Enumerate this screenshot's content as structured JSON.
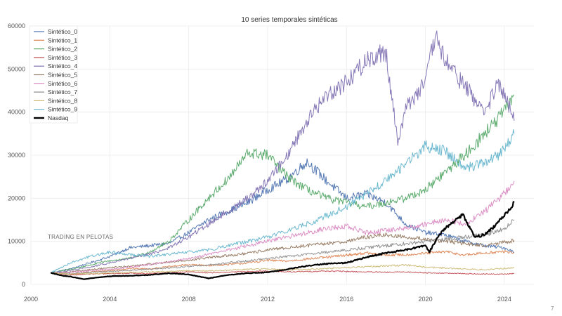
{
  "chart_data": {
    "type": "line",
    "title": "10 series temporales sintéticas",
    "xlabel": "",
    "ylabel": "",
    "xlim": [
      2000,
      2025.5
    ],
    "ylim": [
      0,
      60000
    ],
    "x_ticks": [
      "2000",
      "2004",
      "2008",
      "2012",
      "2016",
      "2020",
      "2024"
    ],
    "y_ticks": [
      "0",
      "10000",
      "20000",
      "30000",
      "40000",
      "50000",
      "60000"
    ],
    "grid": true,
    "legend_position": "top-left",
    "series": [
      {
        "name": "Sintético_0",
        "color": "#4c72b0",
        "width": 1,
        "points": [
          [
            2001,
            2700
          ],
          [
            2002,
            3600
          ],
          [
            2003,
            5000
          ],
          [
            2004,
            6500
          ],
          [
            2005,
            8500
          ],
          [
            2006,
            9000
          ],
          [
            2007,
            9500
          ],
          [
            2008,
            12000
          ],
          [
            2009,
            15000
          ],
          [
            2010,
            17000
          ],
          [
            2011,
            19000
          ],
          [
            2012,
            22000
          ],
          [
            2013,
            24500
          ],
          [
            2014,
            28500
          ],
          [
            2015,
            24000
          ],
          [
            2016,
            20000
          ],
          [
            2017,
            21000
          ],
          [
            2018,
            19000
          ],
          [
            2019,
            14000
          ],
          [
            2020,
            12000
          ],
          [
            2021,
            11500
          ],
          [
            2022,
            10000
          ],
          [
            2023,
            9000
          ],
          [
            2024,
            8500
          ],
          [
            2024.5,
            7500
          ]
        ]
      },
      {
        "name": "Sintético_1",
        "color": "#dd8452",
        "width": 1,
        "points": [
          [
            2001,
            2700
          ],
          [
            2002,
            2300
          ],
          [
            2003,
            2900
          ],
          [
            2004,
            3200
          ],
          [
            2005,
            3700
          ],
          [
            2006,
            3600
          ],
          [
            2007,
            4100
          ],
          [
            2008,
            4600
          ],
          [
            2009,
            4400
          ],
          [
            2010,
            4600
          ],
          [
            2011,
            5000
          ],
          [
            2012,
            5600
          ],
          [
            2013,
            5400
          ],
          [
            2014,
            5900
          ],
          [
            2015,
            6300
          ],
          [
            2016,
            6800
          ],
          [
            2017,
            7300
          ],
          [
            2018,
            6800
          ],
          [
            2019,
            6900
          ],
          [
            2020,
            7200
          ],
          [
            2021,
            7600
          ],
          [
            2022,
            6800
          ],
          [
            2023,
            7300
          ],
          [
            2024,
            7600
          ],
          [
            2024.5,
            7400
          ]
        ]
      },
      {
        "name": "Sintético_2",
        "color": "#55a868",
        "width": 1,
        "points": [
          [
            2001,
            2700
          ],
          [
            2002,
            3500
          ],
          [
            2003,
            4500
          ],
          [
            2004,
            5500
          ],
          [
            2005,
            6000
          ],
          [
            2006,
            7500
          ],
          [
            2007,
            10000
          ],
          [
            2008,
            15000
          ],
          [
            2009,
            20000
          ],
          [
            2010,
            24500
          ],
          [
            2011,
            30500
          ],
          [
            2012,
            30000
          ],
          [
            2013,
            25000
          ],
          [
            2014,
            22000
          ],
          [
            2015,
            20000
          ],
          [
            2016,
            19000
          ],
          [
            2017,
            18000
          ],
          [
            2018,
            19000
          ],
          [
            2019,
            20000
          ],
          [
            2020,
            22000
          ],
          [
            2021,
            26000
          ],
          [
            2022,
            30000
          ],
          [
            2023,
            35000
          ],
          [
            2024,
            40000
          ],
          [
            2024.5,
            44000
          ]
        ]
      },
      {
        "name": "Sintético_3",
        "color": "#c44e52",
        "width": 1,
        "points": [
          [
            2001,
            2700
          ],
          [
            2002,
            2200
          ],
          [
            2003,
            2400
          ],
          [
            2004,
            2500
          ],
          [
            2005,
            2600
          ],
          [
            2006,
            2500
          ],
          [
            2007,
            2700
          ],
          [
            2008,
            2900
          ],
          [
            2009,
            2700
          ],
          [
            2010,
            2800
          ],
          [
            2011,
            3000
          ],
          [
            2012,
            3100
          ],
          [
            2013,
            2900
          ],
          [
            2014,
            3000
          ],
          [
            2015,
            3100
          ],
          [
            2016,
            3000
          ],
          [
            2017,
            2900
          ],
          [
            2018,
            2800
          ],
          [
            2019,
            2900
          ],
          [
            2020,
            2700
          ],
          [
            2021,
            2600
          ],
          [
            2022,
            2500
          ],
          [
            2023,
            2400
          ],
          [
            2024,
            2400
          ],
          [
            2024.5,
            2500
          ]
        ]
      },
      {
        "name": "Sintético_4",
        "color": "#8172b3",
        "width": 1,
        "points": [
          [
            2001,
            2700
          ],
          [
            2002,
            3200
          ],
          [
            2003,
            4000
          ],
          [
            2004,
            5000
          ],
          [
            2005,
            6000
          ],
          [
            2006,
            7000
          ],
          [
            2007,
            8500
          ],
          [
            2008,
            11000
          ],
          [
            2009,
            14000
          ],
          [
            2010,
            17000
          ],
          [
            2011,
            20000
          ],
          [
            2012,
            24000
          ],
          [
            2013,
            30000
          ],
          [
            2014,
            38000
          ],
          [
            2015,
            44000
          ],
          [
            2016,
            47000
          ],
          [
            2017,
            52000
          ],
          [
            2018,
            54000
          ],
          [
            2018.6,
            33000
          ],
          [
            2019,
            41000
          ],
          [
            2020,
            47000
          ],
          [
            2020.5,
            57500
          ],
          [
            2021,
            52000
          ],
          [
            2022,
            46000
          ],
          [
            2023,
            40000
          ],
          [
            2023.7,
            46500
          ],
          [
            2024,
            44000
          ],
          [
            2024.5,
            38000
          ]
        ]
      },
      {
        "name": "Sintético_5",
        "color": "#937860",
        "width": 1,
        "points": [
          [
            2001,
            2700
          ],
          [
            2002,
            2900
          ],
          [
            2003,
            3400
          ],
          [
            2004,
            3900
          ],
          [
            2005,
            4200
          ],
          [
            2006,
            4700
          ],
          [
            2007,
            5200
          ],
          [
            2008,
            5600
          ],
          [
            2009,
            6200
          ],
          [
            2010,
            6700
          ],
          [
            2011,
            7200
          ],
          [
            2012,
            8000
          ],
          [
            2013,
            8500
          ],
          [
            2014,
            9000
          ],
          [
            2015,
            9500
          ],
          [
            2016,
            10000
          ],
          [
            2017,
            11000
          ],
          [
            2018,
            11500
          ],
          [
            2019,
            11000
          ],
          [
            2020,
            10500
          ],
          [
            2021,
            10000
          ],
          [
            2022,
            9500
          ],
          [
            2023,
            9000
          ],
          [
            2024,
            9800
          ],
          [
            2024.5,
            10200
          ]
        ]
      },
      {
        "name": "Sintético_6",
        "color": "#da8bc3",
        "width": 1,
        "points": [
          [
            2001,
            2700
          ],
          [
            2002,
            2800
          ],
          [
            2003,
            3200
          ],
          [
            2004,
            3500
          ],
          [
            2005,
            4000
          ],
          [
            2006,
            4600
          ],
          [
            2007,
            5200
          ],
          [
            2008,
            6000
          ],
          [
            2009,
            7000
          ],
          [
            2010,
            8000
          ],
          [
            2011,
            9000
          ],
          [
            2012,
            10000
          ],
          [
            2013,
            11000
          ],
          [
            2014,
            12000
          ],
          [
            2015,
            13000
          ],
          [
            2016,
            13500
          ],
          [
            2017,
            12000
          ],
          [
            2018,
            12500
          ],
          [
            2019,
            13000
          ],
          [
            2020,
            14000
          ],
          [
            2021,
            15000
          ],
          [
            2022,
            14000
          ],
          [
            2023,
            17000
          ],
          [
            2024,
            21000
          ],
          [
            2024.5,
            24000
          ]
        ]
      },
      {
        "name": "Sintético_7",
        "color": "#8c8c8c",
        "width": 1,
        "points": [
          [
            2001,
            2700
          ],
          [
            2002,
            2500
          ],
          [
            2003,
            2800
          ],
          [
            2004,
            3000
          ],
          [
            2005,
            3300
          ],
          [
            2006,
            3500
          ],
          [
            2007,
            3800
          ],
          [
            2008,
            4200
          ],
          [
            2009,
            4500
          ],
          [
            2010,
            5000
          ],
          [
            2011,
            5500
          ],
          [
            2012,
            6000
          ],
          [
            2013,
            6500
          ],
          [
            2014,
            7000
          ],
          [
            2015,
            7500
          ],
          [
            2016,
            8000
          ],
          [
            2017,
            8500
          ],
          [
            2018,
            9000
          ],
          [
            2019,
            9500
          ],
          [
            2020,
            10000
          ],
          [
            2021,
            10500
          ],
          [
            2022,
            11000
          ],
          [
            2023,
            11500
          ],
          [
            2024,
            13000
          ],
          [
            2024.5,
            15000
          ]
        ]
      },
      {
        "name": "Sintético_8",
        "color": "#ccb974",
        "width": 1,
        "points": [
          [
            2001,
            2700
          ],
          [
            2002,
            2400
          ],
          [
            2003,
            2500
          ],
          [
            2004,
            2600
          ],
          [
            2005,
            2800
          ],
          [
            2006,
            2900
          ],
          [
            2007,
            3000
          ],
          [
            2008,
            3200
          ],
          [
            2009,
            3100
          ],
          [
            2010,
            3300
          ],
          [
            2011,
            3500
          ],
          [
            2012,
            3600
          ],
          [
            2013,
            3400
          ],
          [
            2014,
            3500
          ],
          [
            2015,
            3700
          ],
          [
            2016,
            3900
          ],
          [
            2017,
            4100
          ],
          [
            2018,
            4300
          ],
          [
            2019,
            4500
          ],
          [
            2020,
            4000
          ],
          [
            2021,
            3800
          ],
          [
            2022,
            3600
          ],
          [
            2023,
            3400
          ],
          [
            2024,
            3700
          ],
          [
            2024.5,
            3900
          ]
        ]
      },
      {
        "name": "Sintético_9",
        "color": "#64b5cd",
        "width": 1,
        "points": [
          [
            2001,
            2700
          ],
          [
            2002,
            5000
          ],
          [
            2003,
            6500
          ],
          [
            2004,
            7500
          ],
          [
            2005,
            7000
          ],
          [
            2006,
            6500
          ],
          [
            2007,
            7000
          ],
          [
            2008,
            7500
          ],
          [
            2009,
            8000
          ],
          [
            2010,
            9000
          ],
          [
            2011,
            10000
          ],
          [
            2012,
            11000
          ],
          [
            2013,
            12500
          ],
          [
            2014,
            14000
          ],
          [
            2015,
            16000
          ],
          [
            2016,
            18000
          ],
          [
            2017,
            21000
          ],
          [
            2018,
            24000
          ],
          [
            2019,
            28000
          ],
          [
            2020,
            32000
          ],
          [
            2021,
            31000
          ],
          [
            2022,
            27000
          ],
          [
            2023,
            28000
          ],
          [
            2024,
            31000
          ],
          [
            2024.5,
            35000
          ]
        ]
      },
      {
        "name": "Nasdaq",
        "color": "#000000",
        "width": 2.2,
        "points": [
          [
            2001,
            2700
          ],
          [
            2001.5,
            2100
          ],
          [
            2002,
            1800
          ],
          [
            2002.7,
            1200
          ],
          [
            2003,
            1400
          ],
          [
            2004,
            1900
          ],
          [
            2005,
            2000
          ],
          [
            2006,
            2200
          ],
          [
            2007,
            2600
          ],
          [
            2008,
            2300
          ],
          [
            2009,
            1400
          ],
          [
            2010,
            2200
          ],
          [
            2011,
            2600
          ],
          [
            2012,
            2800
          ],
          [
            2013,
            3500
          ],
          [
            2014,
            4300
          ],
          [
            2015,
            4800
          ],
          [
            2016,
            5000
          ],
          [
            2017,
            6300
          ],
          [
            2018,
            7300
          ],
          [
            2019,
            8000
          ],
          [
            2020,
            9000
          ],
          [
            2020.2,
            7500
          ],
          [
            2020.7,
            11500
          ],
          [
            2021,
            13000
          ],
          [
            2021.9,
            16200
          ],
          [
            2022.5,
            11000
          ],
          [
            2023,
            11500
          ],
          [
            2023.5,
            13500
          ],
          [
            2024,
            16000
          ],
          [
            2024.5,
            19000
          ]
        ]
      }
    ]
  },
  "watermark": "TRADING EN PELOTAS",
  "corner_mark": "7"
}
